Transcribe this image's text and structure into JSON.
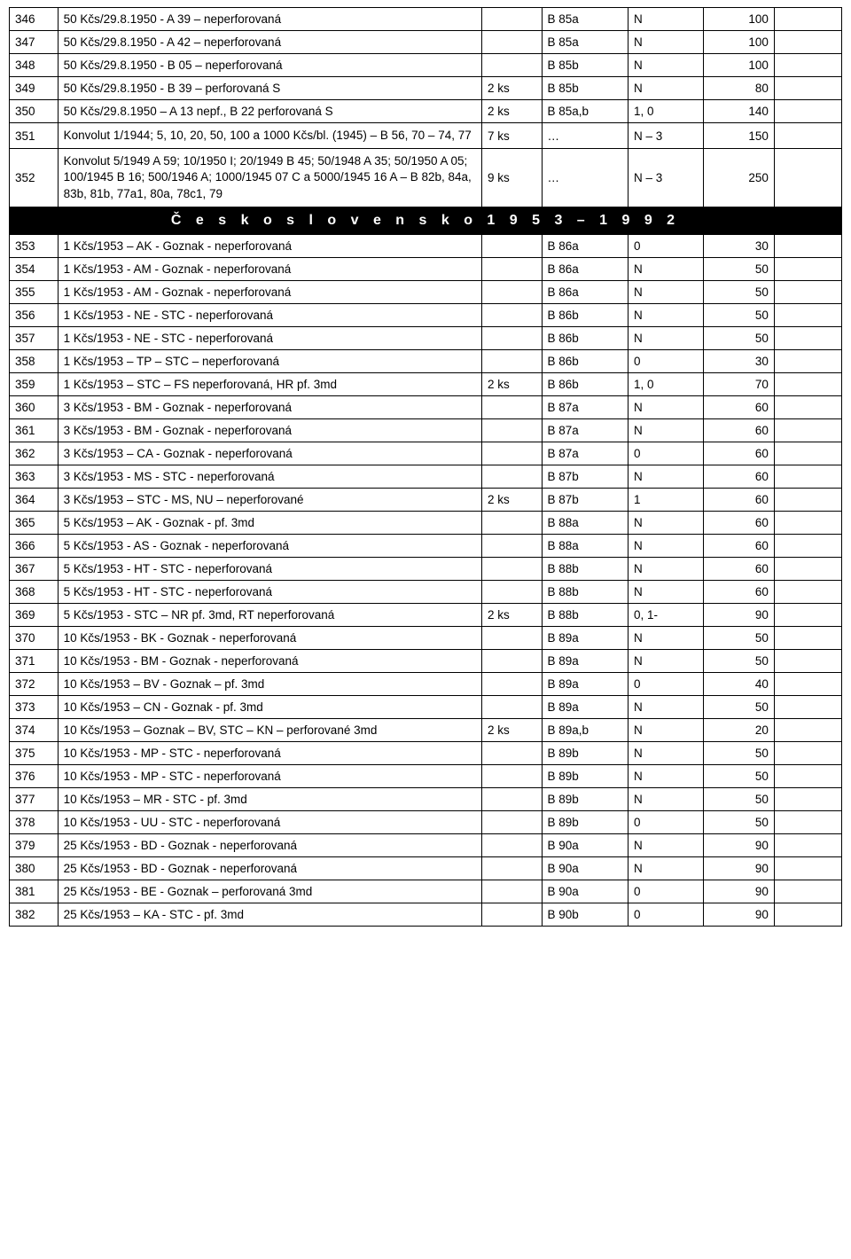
{
  "section1": {
    "rows": [
      {
        "n": "346",
        "d": "50 Kčs/29.8.1950 - A 39 – neperforovaná",
        "q": "",
        "r": "B 85a",
        "c": "N",
        "p": "100"
      },
      {
        "n": "347",
        "d": "50 Kčs/29.8.1950 - A 42 – neperforovaná",
        "q": "",
        "r": "B 85a",
        "c": "N",
        "p": "100"
      },
      {
        "n": "348",
        "d": "50 Kčs/29.8.1950 - B 05 – neperforovaná",
        "q": "",
        "r": "B 85b",
        "c": "N",
        "p": "100"
      },
      {
        "n": "349",
        "d": "50 Kčs/29.8.1950 - B 39 – perforovaná S",
        "q": "2 ks",
        "r": "B 85b",
        "c": "N",
        "p": "80"
      },
      {
        "n": "350",
        "d": "50 Kčs/29.8.1950 – A 13 nepf., B 22 perforovaná S",
        "q": "2 ks",
        "r": "B 85a,b",
        "c": "1, 0",
        "p": "140"
      },
      {
        "n": "351",
        "d": "Konvolut 1/1944; 5, 10, 20, 50, 100 a 1000 Kčs/bl. (1945) – B 56, 70 – 74, 77",
        "q": "7 ks",
        "r": "…",
        "c": "N – 3",
        "p": "150"
      },
      {
        "n": "352",
        "d": "Konvolut 5/1949 A 59; 10/1950 I; 20/1949 B 45; 50/1948 A 35; 50/1950 A 05; 100/1945 B 16; 500/1946 A; 1000/1945 07 C a 5000/1945 16 A – B 82b, 84a, 83b, 81b, 77a1, 80a, 78c1, 79",
        "q": "9 ks",
        "r": "…",
        "c": "N – 3",
        "p": "250"
      }
    ]
  },
  "divider_title": "Č e s k o s l o v e n s k o   1 9 5 3  –  1 9 9 2",
  "section2": {
    "rows": [
      {
        "n": "353",
        "d": "1 Kčs/1953 – AK - Goznak - neperforovaná",
        "q": "",
        "r": "B 86a",
        "c": "0",
        "p": "30"
      },
      {
        "n": "354",
        "d": "1 Kčs/1953 - AM - Goznak - neperforovaná",
        "q": "",
        "r": "B 86a",
        "c": "N",
        "p": "50"
      },
      {
        "n": "355",
        "d": "1 Kčs/1953 - AM - Goznak - neperforovaná",
        "q": "",
        "r": "B 86a",
        "c": "N",
        "p": "50"
      },
      {
        "n": "356",
        "d": "1 Kčs/1953 - NE - STC - neperforovaná",
        "q": "",
        "r": "B 86b",
        "c": "N",
        "p": "50"
      },
      {
        "n": "357",
        "d": "1 Kčs/1953 - NE - STC - neperforovaná",
        "q": "",
        "r": "B 86b",
        "c": "N",
        "p": "50"
      },
      {
        "n": "358",
        "d": "1 Kčs/1953 – TP – STC – neperforovaná",
        "q": "",
        "r": "B 86b",
        "c": "0",
        "p": "30"
      },
      {
        "n": "359",
        "d": "1 Kčs/1953 – STC – FS neperforovaná, HR pf. 3md",
        "q": "2 ks",
        "r": "B 86b",
        "c": "1, 0",
        "p": "70"
      },
      {
        "n": "360",
        "d": "3 Kčs/1953 - BM - Goznak - neperforovaná",
        "q": "",
        "r": "B 87a",
        "c": "N",
        "p": "60"
      },
      {
        "n": "361",
        "d": "3 Kčs/1953 - BM - Goznak - neperforovaná",
        "q": "",
        "r": "B 87a",
        "c": "N",
        "p": "60"
      },
      {
        "n": "362",
        "d": "3 Kčs/1953 – CA - Goznak - neperforovaná",
        "q": "",
        "r": "B 87a",
        "c": "0",
        "p": "60"
      },
      {
        "n": "363",
        "d": "3 Kčs/1953 - MS - STC - neperforovaná",
        "q": "",
        "r": "B 87b",
        "c": "N",
        "p": "60"
      },
      {
        "n": "364",
        "d": "3 Kčs/1953 – STC - MS, NU – neperforované",
        "q": "2 ks",
        "r": "B 87b",
        "c": "1",
        "p": "60"
      },
      {
        "n": "365",
        "d": "5 Kčs/1953 – AK - Goznak - pf. 3md",
        "q": "",
        "r": "B 88a",
        "c": "N",
        "p": "60"
      },
      {
        "n": "366",
        "d": "5 Kčs/1953 - AS - Goznak - neperforovaná",
        "q": "",
        "r": "B 88a",
        "c": "N",
        "p": "60"
      },
      {
        "n": "367",
        "d": "5 Kčs/1953 - HT - STC - neperforovaná",
        "q": "",
        "r": "B 88b",
        "c": "N",
        "p": "60"
      },
      {
        "n": "368",
        "d": "5 Kčs/1953 - HT - STC - neperforovaná",
        "q": "",
        "r": "B 88b",
        "c": "N",
        "p": "60"
      },
      {
        "n": "369",
        "d": "5 Kčs/1953 - STC – NR pf. 3md, RT neperforovaná",
        "q": "2 ks",
        "r": "B 88b",
        "c": "0, 1-",
        "p": "90"
      },
      {
        "n": "370",
        "d": "10 Kčs/1953 - BK - Goznak - neperforovaná",
        "q": "",
        "r": "B 89a",
        "c": "N",
        "p": "50"
      },
      {
        "n": "371",
        "d": "10 Kčs/1953 - BM - Goznak - neperforovaná",
        "q": "",
        "r": "B 89a",
        "c": "N",
        "p": "50"
      },
      {
        "n": "372",
        "d": "10 Kčs/1953 – BV - Goznak – pf. 3md",
        "q": "",
        "r": "B 89a",
        "c": "0",
        "p": "40"
      },
      {
        "n": "373",
        "d": "10 Kčs/1953 – CN - Goznak - pf. 3md",
        "q": "",
        "r": "B 89a",
        "c": "N",
        "p": "50"
      },
      {
        "n": "374",
        "d": "10 Kčs/1953 – Goznak – BV, STC – KN – perforované 3md",
        "q": "2 ks",
        "r": "B 89a,b",
        "c": "N",
        "p": "20"
      },
      {
        "n": "375",
        "d": "10 Kčs/1953 - MP - STC - neperforovaná",
        "q": "",
        "r": "B 89b",
        "c": "N",
        "p": "50"
      },
      {
        "n": "376",
        "d": "10 Kčs/1953 - MP - STC - neperforovaná",
        "q": "",
        "r": "B 89b",
        "c": "N",
        "p": "50"
      },
      {
        "n": "377",
        "d": "10 Kčs/1953 – MR - STC - pf. 3md",
        "q": "",
        "r": "B 89b",
        "c": "N",
        "p": "50"
      },
      {
        "n": "378",
        "d": "10 Kčs/1953 - UU - STC - neperforovaná",
        "q": "",
        "r": "B 89b",
        "c": "0",
        "p": "50"
      },
      {
        "n": "379",
        "d": "25 Kčs/1953 - BD - Goznak - neperforovaná",
        "q": "",
        "r": "B 90a",
        "c": "N",
        "p": "90"
      },
      {
        "n": "380",
        "d": "25 Kčs/1953 - BD - Goznak - neperforovaná",
        "q": "",
        "r": "B 90a",
        "c": "N",
        "p": "90"
      },
      {
        "n": "381",
        "d": "25 Kčs/1953 - BE - Goznak – perforovaná 3md",
        "q": "",
        "r": "B 90a",
        "c": "0",
        "p": "90"
      },
      {
        "n": "382",
        "d": "25 Kčs/1953 – KA - STC - pf. 3md",
        "q": "",
        "r": "B 90b",
        "c": "0",
        "p": "90"
      }
    ]
  }
}
